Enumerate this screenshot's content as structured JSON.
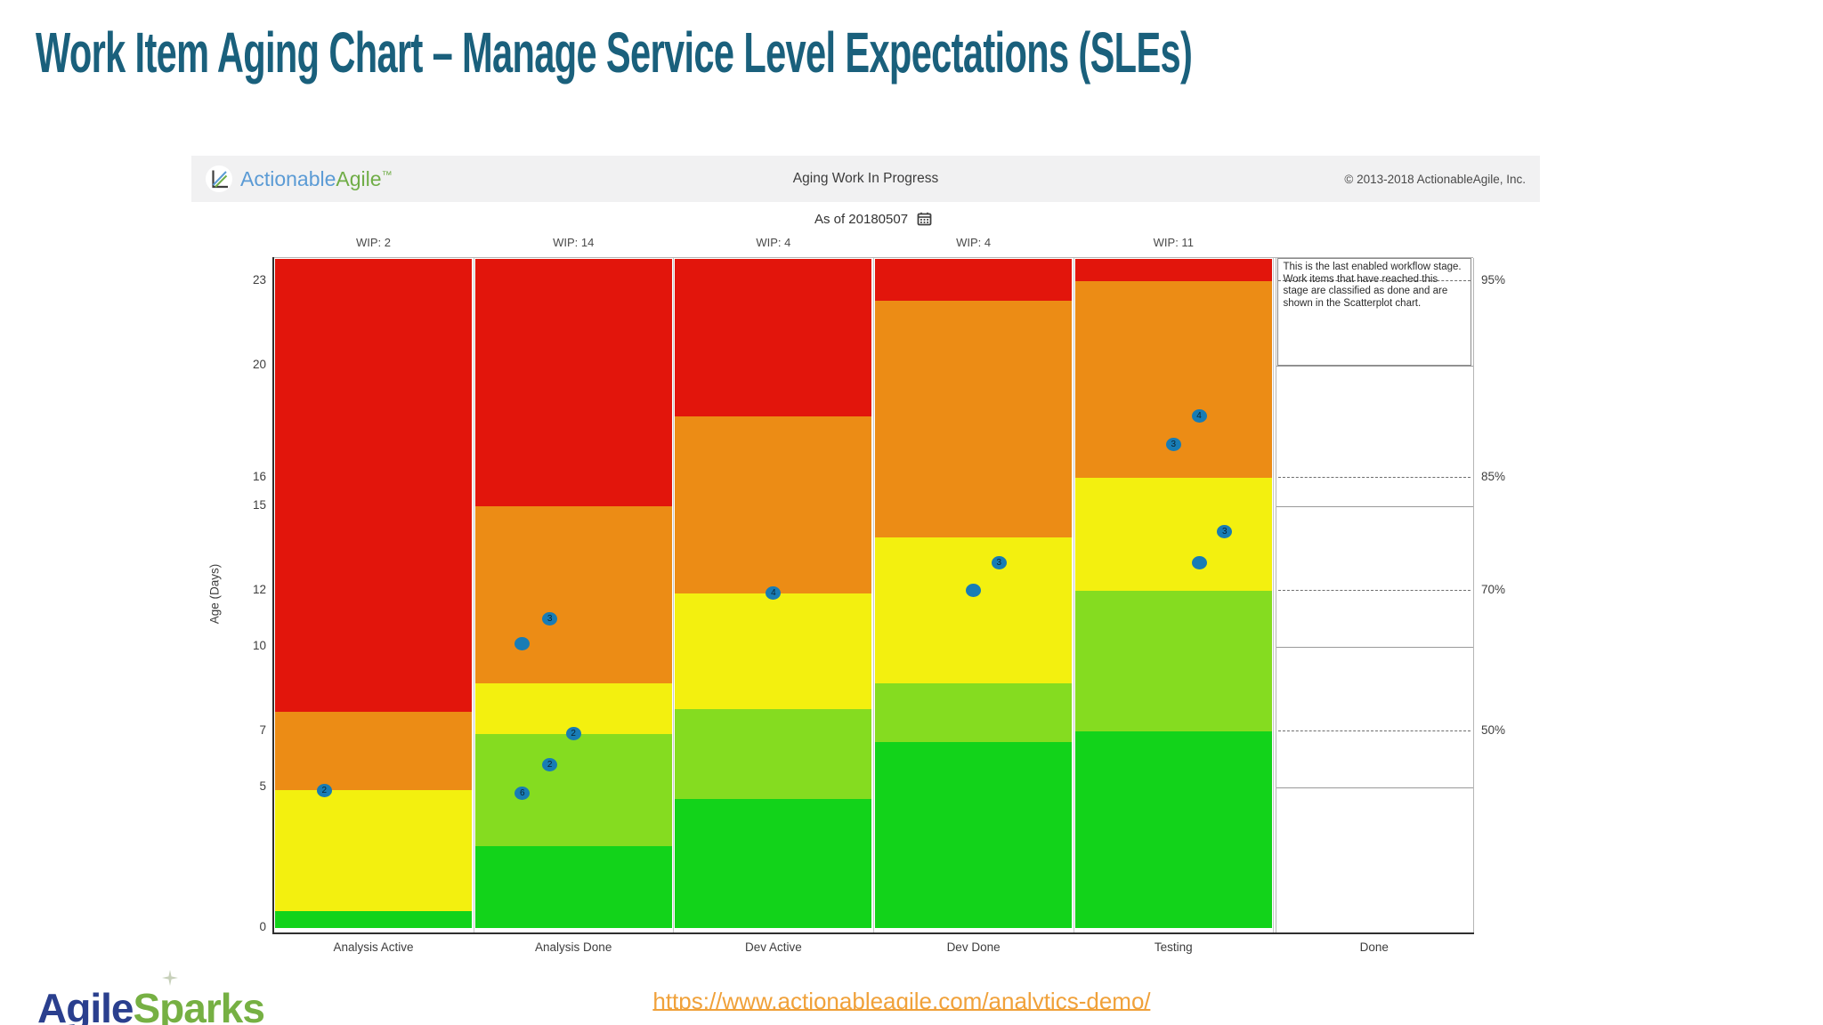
{
  "page_title": "Work Item Aging Chart – Manage Service Level Expectations (SLEs)",
  "panel": {
    "logo": {
      "actionable": "Actionable",
      "agile": "Agile",
      "tm": "™"
    },
    "header_title": "Aging Work In Progress",
    "copyright": "© 2013-2018 ActionableAgile, Inc.",
    "as_of": "As of 20180507"
  },
  "chart_data": {
    "type": "aging-wip",
    "title": "Aging Work In Progress",
    "ylabel": "Age (Days)",
    "ylim": [
      0,
      23.8
    ],
    "y_ticks": [
      23,
      20,
      16,
      15,
      12,
      10,
      7,
      5,
      0
    ],
    "grid": "done-column-only",
    "legend_position": "none",
    "band_colors": {
      "red": "#e2150c",
      "orange": "#ec8c15",
      "yellow": "#f3f00f",
      "lightgreen": "#85dc20",
      "green": "#12d31a"
    },
    "dot_color": "#187cb5",
    "percentiles": [
      {
        "label": "95%",
        "day": 23
      },
      {
        "label": "85%",
        "day": 16
      },
      {
        "label": "70%",
        "day": 12
      },
      {
        "label": "50%",
        "day": 7
      }
    ],
    "solid_gridline_days": [
      20,
      15,
      10,
      5
    ],
    "stages": [
      {
        "name": "Analysis Active",
        "wip_label": "WIP: 2",
        "bands": [
          {
            "c": "green",
            "top": 0.6
          },
          {
            "c": "yellow",
            "top": 4.9
          },
          {
            "c": "orange",
            "top": 7.7
          },
          {
            "c": "red",
            "top": 23.8
          }
        ],
        "items": [
          {
            "day": 4.9,
            "x": 0.25,
            "label": "2"
          }
        ]
      },
      {
        "name": "Analysis Done",
        "wip_label": "WIP: 14",
        "bands": [
          {
            "c": "green",
            "top": 2.9
          },
          {
            "c": "lightgreen",
            "top": 6.9
          },
          {
            "c": "yellow",
            "top": 8.7
          },
          {
            "c": "orange",
            "top": 15
          },
          {
            "c": "red",
            "top": 23.8
          }
        ],
        "items": [
          {
            "day": 11,
            "x": 0.38,
            "label": "3"
          },
          {
            "day": 10.1,
            "x": 0.24,
            "label": ""
          },
          {
            "day": 6.9,
            "x": 0.5,
            "label": "2"
          },
          {
            "day": 5.8,
            "x": 0.38,
            "label": "2"
          },
          {
            "day": 4.8,
            "x": 0.24,
            "label": "6"
          }
        ]
      },
      {
        "name": "Dev Active",
        "wip_label": "WIP: 4",
        "bands": [
          {
            "c": "green",
            "top": 4.6
          },
          {
            "c": "lightgreen",
            "top": 7.8
          },
          {
            "c": "yellow",
            "top": 11.9
          },
          {
            "c": "orange",
            "top": 18.2
          },
          {
            "c": "red",
            "top": 23.8
          }
        ],
        "items": [
          {
            "day": 11.9,
            "x": 0.5,
            "label": "4"
          }
        ]
      },
      {
        "name": "Dev Done",
        "wip_label": "WIP: 4",
        "bands": [
          {
            "c": "green",
            "top": 6.6
          },
          {
            "c": "lightgreen",
            "top": 8.7
          },
          {
            "c": "yellow",
            "top": 13.9
          },
          {
            "c": "orange",
            "top": 22.3
          },
          {
            "c": "red",
            "top": 23.8
          }
        ],
        "items": [
          {
            "day": 13,
            "x": 0.63,
            "label": "3"
          },
          {
            "day": 12,
            "x": 0.5,
            "label": ""
          }
        ]
      },
      {
        "name": "Testing",
        "wip_label": "WIP: 11",
        "bands": [
          {
            "c": "green",
            "top": 7
          },
          {
            "c": "lightgreen",
            "top": 12
          },
          {
            "c": "yellow",
            "top": 16
          },
          {
            "c": "orange",
            "top": 23
          },
          {
            "c": "red",
            "top": 23.8
          }
        ],
        "items": [
          {
            "day": 18.2,
            "x": 0.63,
            "label": "4"
          },
          {
            "day": 17.2,
            "x": 0.5,
            "label": "3"
          },
          {
            "day": 14.1,
            "x": 0.76,
            "label": "3"
          },
          {
            "day": 13,
            "x": 0.63,
            "label": ""
          }
        ]
      }
    ],
    "done_stage": {
      "name": "Done",
      "annotation": "This is the last enabled workflow stage. Work items that have reached this stage are classified as done and are shown in the Scatterplot chart."
    }
  },
  "footer": {
    "brand": {
      "agile": "Agile",
      "sparks": "Sparks"
    },
    "link": "https://www.actionableagile.com/analytics-demo/"
  }
}
